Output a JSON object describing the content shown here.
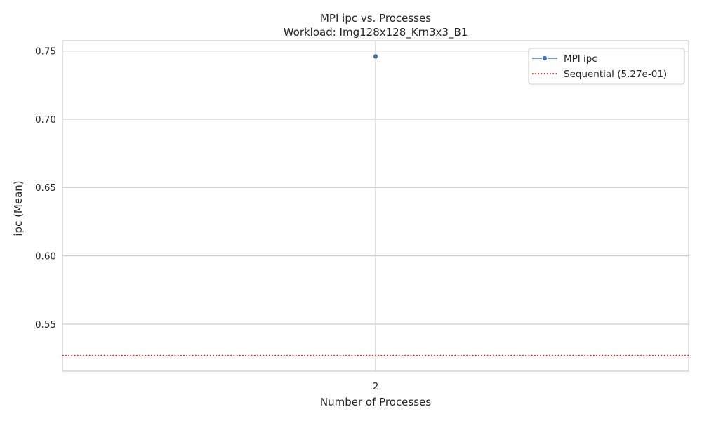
{
  "chart_data": {
    "type": "line",
    "title": "MPI ipc vs. Processes",
    "subtitle": "Workload: Img128x128_Krn3x3_B1",
    "xlabel": "Number of Processes",
    "ylabel": "ipc (Mean)",
    "x_categories": [
      "2"
    ],
    "ylim": [
      0.5155,
      0.7575
    ],
    "y_ticks": [
      0.55,
      0.6,
      0.65,
      0.7,
      0.75
    ],
    "y_tick_labels": [
      "0.55",
      "0.60",
      "0.65",
      "0.70",
      "0.75"
    ],
    "grid": true,
    "legend_position": "top-right",
    "series": [
      {
        "name": "MPI ipc",
        "x": [
          "2"
        ],
        "values": [
          0.746
        ],
        "color": "#4c72b0",
        "marker": "circle"
      }
    ],
    "reference_lines": [
      {
        "name": "Sequential (5.27e-01)",
        "value": 0.527,
        "color": "#ff0000",
        "style": "dotted"
      }
    ]
  }
}
